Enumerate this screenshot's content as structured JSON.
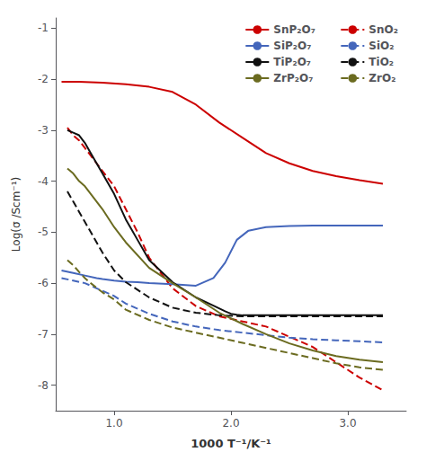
{
  "chart_data": {
    "type": "line",
    "xlabel": "1000 T⁻¹/K⁻¹",
    "ylabel": "Log(σ /Scm⁻¹)",
    "xlim": [
      0.5,
      3.5
    ],
    "ylim": [
      -8.5,
      -0.8
    ],
    "xticks": [
      {
        "value": 1.0,
        "label": "1.0"
      },
      {
        "value": 2.0,
        "label": "2.0"
      },
      {
        "value": 3.0,
        "label": "3.0"
      }
    ],
    "yticks": [
      -8,
      -7,
      -6,
      -5,
      -4,
      -3,
      -2,
      -1
    ],
    "grid": false,
    "legend": "upper right",
    "series": [
      {
        "name": "SnP₂O₇",
        "color": "#cc0000",
        "line_style": "solid",
        "x": [
          0.55,
          0.7,
          0.9,
          1.1,
          1.3,
          1.5,
          1.7,
          1.9,
          2.1,
          2.3,
          2.5,
          2.7,
          2.9,
          3.1,
          3.3
        ],
        "values": [
          -2.05,
          -2.05,
          -2.07,
          -2.1,
          -2.15,
          -2.25,
          -2.5,
          -2.85,
          -3.15,
          -3.45,
          -3.65,
          -3.8,
          -3.9,
          -3.98,
          -4.05
        ]
      },
      {
        "name": "SnO₂",
        "color": "#cc0000",
        "line_style": "dashed",
        "x": [
          0.6,
          0.65,
          0.7,
          0.75,
          0.8,
          0.85,
          0.9,
          1.0,
          1.1,
          1.2,
          1.3,
          1.5,
          1.7,
          1.9,
          2.1,
          2.3,
          2.5,
          2.7,
          2.9,
          3.1,
          3.3
        ],
        "values": [
          -2.95,
          -3.1,
          -3.2,
          -3.35,
          -3.5,
          -3.65,
          -3.8,
          -4.1,
          -4.55,
          -5.0,
          -5.5,
          -6.1,
          -6.45,
          -6.65,
          -6.75,
          -6.85,
          -7.05,
          -7.25,
          -7.55,
          -7.85,
          -8.1
        ]
      },
      {
        "name": "SiP₂O₇",
        "color": "#4466bb",
        "line_style": "solid",
        "x": [
          0.55,
          0.65,
          0.75,
          0.85,
          0.9,
          1.0,
          1.1,
          1.2,
          1.3,
          1.5,
          1.7,
          1.85,
          1.95,
          2.05,
          2.15,
          2.3,
          2.5,
          2.7,
          2.9,
          3.1,
          3.3
        ],
        "values": [
          -5.75,
          -5.8,
          -5.85,
          -5.9,
          -5.92,
          -5.95,
          -5.97,
          -5.98,
          -6.0,
          -6.02,
          -6.05,
          -5.9,
          -5.6,
          -5.15,
          -4.97,
          -4.9,
          -4.88,
          -4.87,
          -4.87,
          -4.87,
          -4.87
        ]
      },
      {
        "name": "SiO₂",
        "color": "#4466bb",
        "line_style": "dashed",
        "x": [
          0.55,
          0.65,
          0.75,
          0.85,
          0.9,
          1.0,
          1.1,
          1.3,
          1.5,
          1.7,
          1.9,
          2.1,
          2.3,
          2.5,
          2.7,
          2.9,
          3.1,
          3.3
        ],
        "values": [
          -5.9,
          -5.95,
          -6.0,
          -6.1,
          -6.15,
          -6.25,
          -6.4,
          -6.6,
          -6.75,
          -6.85,
          -6.92,
          -6.97,
          -7.02,
          -7.07,
          -7.1,
          -7.12,
          -7.14,
          -7.16
        ]
      },
      {
        "name": "TiP₂O₇",
        "color": "#111111",
        "line_style": "solid",
        "x": [
          0.6,
          0.65,
          0.7,
          0.75,
          0.8,
          0.85,
          0.9,
          1.0,
          1.1,
          1.2,
          1.3,
          1.5,
          1.7,
          1.85,
          1.95,
          2.0,
          2.05,
          2.1,
          2.2,
          2.3,
          2.5,
          2.7,
          2.9,
          3.1,
          3.3
        ],
        "values": [
          -3.0,
          -3.05,
          -3.1,
          -3.25,
          -3.45,
          -3.65,
          -3.85,
          -4.25,
          -4.75,
          -5.15,
          -5.55,
          -5.98,
          -6.28,
          -6.44,
          -6.55,
          -6.6,
          -6.62,
          -6.63,
          -6.63,
          -6.63,
          -6.63,
          -6.63,
          -6.63,
          -6.63,
          -6.63
        ]
      },
      {
        "name": "TiO₂",
        "color": "#111111",
        "line_style": "dashed",
        "x": [
          0.6,
          0.65,
          0.7,
          0.75,
          0.8,
          0.9,
          1.0,
          1.1,
          1.3,
          1.5,
          1.7,
          1.9,
          2.1,
          2.3,
          2.5,
          2.7,
          2.9,
          3.1,
          3.3
        ],
        "values": [
          -4.2,
          -4.4,
          -4.6,
          -4.8,
          -5.0,
          -5.4,
          -5.75,
          -5.98,
          -6.28,
          -6.48,
          -6.58,
          -6.63,
          -6.65,
          -6.65,
          -6.65,
          -6.65,
          -6.65,
          -6.65,
          -6.65
        ]
      },
      {
        "name": "ZrP₂O₇",
        "color": "#6b6b20",
        "line_style": "solid",
        "x": [
          0.6,
          0.65,
          0.7,
          0.75,
          0.8,
          0.85,
          0.9,
          1.0,
          1.1,
          1.3,
          1.5,
          1.7,
          1.9,
          2.1,
          2.3,
          2.5,
          2.7,
          2.9,
          3.1,
          3.3
        ],
        "values": [
          -3.75,
          -3.85,
          -4.0,
          -4.1,
          -4.25,
          -4.4,
          -4.55,
          -4.9,
          -5.2,
          -5.7,
          -6.0,
          -6.28,
          -6.58,
          -6.8,
          -7.0,
          -7.18,
          -7.32,
          -7.43,
          -7.5,
          -7.55
        ]
      },
      {
        "name": "ZrO₂",
        "color": "#6b6b20",
        "line_style": "dashed",
        "x": [
          0.6,
          0.65,
          0.7,
          0.75,
          0.8,
          0.9,
          1.0,
          1.1,
          1.3,
          1.5,
          1.7,
          1.9,
          2.1,
          2.3,
          2.5,
          2.7,
          2.9,
          3.1,
          3.3
        ],
        "values": [
          -5.55,
          -5.65,
          -5.78,
          -5.9,
          -6.0,
          -6.18,
          -6.32,
          -6.52,
          -6.72,
          -6.87,
          -6.97,
          -7.07,
          -7.17,
          -7.27,
          -7.37,
          -7.47,
          -7.57,
          -7.65,
          -7.7
        ]
      }
    ]
  }
}
